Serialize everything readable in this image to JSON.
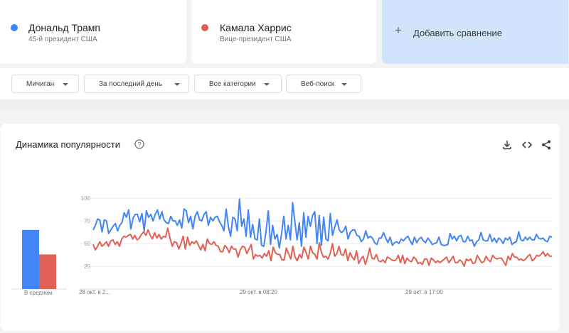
{
  "terms": [
    {
      "name": "Дональд Трамп",
      "subtitle": "45-й президент США",
      "color": "#4285f4"
    },
    {
      "name": "Камала Харрис",
      "subtitle": "Вице-президент США",
      "color": "#e06055"
    }
  ],
  "add_compare": {
    "icon": "plus-icon",
    "label": "Добавить сравнение"
  },
  "filters": {
    "region": "Мичиган",
    "period": "За последний день",
    "category": "Все категории",
    "search_type": "Веб-поиск"
  },
  "panel": {
    "title": "Динамика популярности",
    "icons": [
      "help-icon",
      "download-icon",
      "embed-icon",
      "share-icon"
    ]
  },
  "chart_data": {
    "type": "line",
    "title": "",
    "ylim": [
      0,
      100
    ],
    "y_ticks": [
      "100",
      "75",
      "50",
      "25"
    ],
    "x_tick_labels": [
      "28 окт. в 2...",
      "29 окт. в 08:20",
      "29 окт. в 17:00"
    ],
    "averages": {
      "label": "В среднем",
      "values": [
        65,
        38
      ]
    },
    "series": [
      {
        "name": "Дональд Трамп",
        "color": "#4285f4",
        "values": [
          65,
          70,
          77,
          76,
          63,
          76,
          75,
          61,
          65,
          69,
          72,
          64,
          70,
          73,
          84,
          79,
          87,
          66,
          78,
          82,
          82,
          74,
          83,
          64,
          86,
          79,
          82,
          75,
          82,
          87,
          77,
          85,
          76,
          73,
          72,
          80,
          75,
          75,
          70,
          76,
          67,
          88,
          86,
          73,
          80,
          66,
          80,
          85,
          76,
          75,
          82,
          85,
          70,
          79,
          75,
          79,
          80,
          74,
          70,
          64,
          88,
          69,
          58,
          79,
          77,
          64,
          99,
          69,
          77,
          58,
          87,
          57,
          71,
          55,
          54,
          77,
          48,
          47,
          63,
          86,
          49,
          70,
          55,
          60,
          45,
          61,
          80,
          55,
          70,
          54,
          95,
          74,
          54,
          73,
          47,
          84,
          57,
          80,
          69,
          81,
          85,
          50,
          81,
          48,
          79,
          55,
          53,
          83,
          59,
          68,
          76,
          65,
          62,
          64,
          69,
          55,
          62,
          65,
          65,
          59,
          58,
          52,
          55,
          64,
          56,
          58,
          56,
          51,
          49,
          56,
          56,
          62,
          56,
          51,
          57,
          48,
          51,
          52,
          50,
          55,
          53,
          56,
          58,
          53,
          49,
          57,
          51,
          55,
          57,
          53,
          51,
          56,
          53,
          49,
          50,
          51,
          57,
          49,
          48,
          48,
          49,
          61,
          55,
          58,
          53,
          58,
          59,
          52,
          52,
          58,
          53,
          54,
          47,
          52,
          54,
          62,
          54,
          53,
          53,
          60,
          52,
          56,
          51,
          56,
          54,
          50,
          56,
          54,
          57,
          49,
          51,
          52,
          63,
          54,
          53,
          57,
          54,
          57,
          54,
          54,
          60,
          56,
          55,
          56,
          53,
          52,
          58,
          57
        ]
      },
      {
        "name": "Камала Харрис",
        "color": "#e06055",
        "values": [
          49,
          43,
          47,
          52,
          47,
          49,
          52,
          47,
          53,
          54,
          49,
          52,
          47,
          55,
          58,
          57,
          59,
          60,
          55,
          59,
          54,
          56,
          60,
          63,
          59,
          65,
          59,
          55,
          62,
          56,
          60,
          55,
          58,
          57,
          67,
          56,
          47,
          52,
          51,
          44,
          50,
          58,
          44,
          57,
          48,
          52,
          50,
          53,
          48,
          43,
          49,
          42,
          55,
          50,
          49,
          52,
          48,
          47,
          41,
          41,
          48,
          45,
          40,
          47,
          44,
          44,
          35,
          43,
          47,
          46,
          39,
          44,
          49,
          33,
          38,
          36,
          37,
          34,
          39,
          36,
          42,
          31,
          46,
          40,
          38,
          38,
          32,
          32,
          45,
          39,
          33,
          47,
          35,
          31,
          38,
          34,
          46,
          40,
          33,
          47,
          40,
          38,
          33,
          51,
          40,
          35,
          36,
          33,
          39,
          50,
          36,
          39,
          47,
          38,
          37,
          44,
          31,
          40,
          35,
          32,
          42,
          28,
          33,
          36,
          27,
          35,
          45,
          34,
          33,
          38,
          31,
          30,
          32,
          29,
          35,
          34,
          32,
          31,
          32,
          37,
          29,
          37,
          28,
          34,
          31,
          30,
          35,
          33,
          28,
          29,
          27,
          33,
          33,
          26,
          34,
          32,
          29,
          31,
          29,
          31,
          33,
          35,
          29,
          32,
          36,
          29,
          29,
          32,
          30,
          25,
          33,
          31,
          33,
          28,
          29,
          37,
          33,
          29,
          30,
          36,
          32,
          30,
          37,
          34,
          33,
          34,
          34,
          30,
          26,
          36,
          32,
          39,
          35,
          35,
          32,
          33,
          31,
          33,
          36,
          38,
          31,
          33,
          37,
          36,
          38,
          41,
          36,
          39,
          36,
          36
        ]
      }
    ]
  }
}
